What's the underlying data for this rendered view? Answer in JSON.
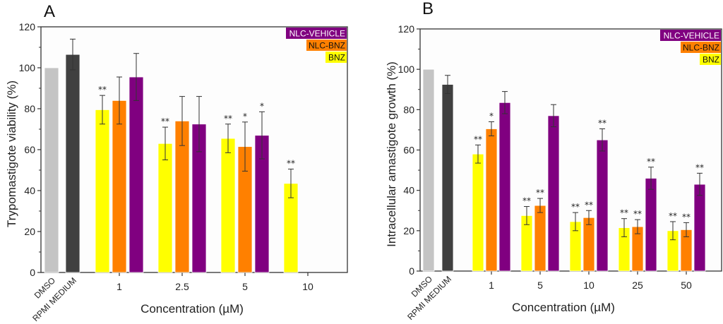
{
  "chart_data": [
    {
      "id": "A",
      "type": "bar",
      "panel_label": "A",
      "title": "",
      "xlabel": "Concentration (µM)",
      "ylabel": "Trypomastigote viability (%)",
      "ylim": [
        0,
        120
      ],
      "yticks": [
        0,
        20,
        40,
        60,
        80,
        100,
        120
      ],
      "grid": false,
      "legend_position": "top-right",
      "controls": [
        {
          "name": "DMSO",
          "value": 100,
          "error": null,
          "color": "#c4c4c4"
        },
        {
          "name": "RPMI MEDIUM",
          "value": 106.5,
          "error": 7.5,
          "color": "#404040"
        }
      ],
      "categories": [
        "1",
        "2.5",
        "5",
        "10"
      ],
      "series": [
        {
          "name": "BNZ",
          "color": "#ffff00",
          "values": [
            79.5,
            63,
            65.5,
            43.5
          ],
          "errors": [
            7,
            8,
            7,
            7
          ],
          "significance": [
            "**",
            "**",
            "**",
            "**"
          ]
        },
        {
          "name": "NLC-BNZ",
          "color": "#ff8000",
          "values": [
            84,
            74,
            61.5,
            null
          ],
          "errors": [
            11.5,
            12,
            12,
            null
          ],
          "significance": [
            "",
            "",
            "*",
            ""
          ]
        },
        {
          "name": "NLC-VEHICLE",
          "color": "#800080",
          "values": [
            95.5,
            72.5,
            67,
            null
          ],
          "errors": [
            11.5,
            13.5,
            11.5,
            null
          ],
          "significance": [
            "",
            "",
            "*",
            ""
          ]
        }
      ],
      "legend": [
        "NLC-VEHICLE",
        "NLC-BNZ",
        "BNZ"
      ]
    },
    {
      "id": "B",
      "type": "bar",
      "panel_label": "B",
      "title": "",
      "xlabel": "Concentration (µM)",
      "ylabel": "Intracellular amastigote growth (%)",
      "ylim": [
        0,
        120
      ],
      "yticks": [
        0,
        20,
        40,
        60,
        80,
        100,
        120
      ],
      "grid": false,
      "legend_position": "top-right",
      "controls": [
        {
          "name": "DMSO",
          "value": 100,
          "error": null,
          "color": "#c4c4c4"
        },
        {
          "name": "RPMI MEDIUM",
          "value": 92.5,
          "error": 4.5,
          "color": "#404040"
        }
      ],
      "categories": [
        "1",
        "5",
        "10",
        "25",
        "50"
      ],
      "series": [
        {
          "name": "BNZ",
          "color": "#ffff00",
          "values": [
            58,
            27.5,
            24.5,
            21.5,
            20
          ],
          "errors": [
            4.5,
            4.5,
            4.5,
            4.5,
            4.5
          ],
          "significance": [
            "**",
            "**",
            "**",
            "**",
            "**"
          ]
        },
        {
          "name": "NLC-BNZ",
          "color": "#ff8000",
          "values": [
            70.5,
            32.5,
            26.5,
            22,
            20.5
          ],
          "errors": [
            3.5,
            3.5,
            3.5,
            3.5,
            3.5
          ],
          "significance": [
            "*",
            "**",
            "**",
            "**",
            "**"
          ]
        },
        {
          "name": "NLC-VEHICLE",
          "color": "#800080",
          "values": [
            83.5,
            77,
            65,
            46,
            43
          ],
          "errors": [
            5.5,
            5.5,
            5.5,
            5.5,
            5.5
          ],
          "significance": [
            "",
            "",
            "**",
            "**",
            "**"
          ]
        }
      ],
      "legend": [
        "NLC-VEHICLE",
        "NLC-BNZ",
        "BNZ"
      ]
    }
  ]
}
